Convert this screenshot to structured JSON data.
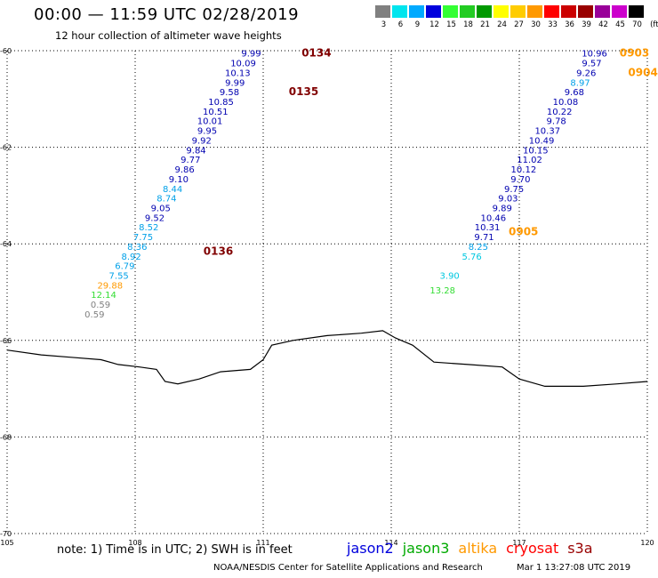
{
  "header": {
    "title": "00:00 — 11:59 UTC 02/28/2019",
    "subtitle": "12 hour collection of altimeter wave heights"
  },
  "colorbar": {
    "swatches": [
      "#808080",
      "#00e5ee",
      "#00aaff",
      "#0000dd",
      "#33ff33",
      "#22cc22",
      "#009900",
      "#ffff00",
      "#ffcc00",
      "#ff9900",
      "#ff0000",
      "#cc0000",
      "#990000",
      "#990099",
      "#cc00cc",
      "#000000"
    ],
    "labels": [
      "3",
      "6",
      "9",
      "12",
      "15",
      "18",
      "21",
      "24",
      "27",
      "30",
      "33",
      "36",
      "39",
      "42",
      "45",
      "70",
      "(ft)"
    ]
  },
  "map": {
    "lon_range": [
      105,
      120
    ],
    "lat_range": [
      -70,
      -60
    ],
    "x_ticks": [
      "105",
      "108",
      "111",
      "114",
      "117",
      "120"
    ],
    "x_tick_values": [
      105,
      108,
      111,
      114,
      117,
      120
    ],
    "y_ticks": [
      "-60",
      "-62",
      "-64",
      "-66",
      "-68",
      "-70"
    ],
    "y_tick_values": [
      -60,
      -62,
      -64,
      -66,
      -68,
      -70
    ],
    "coastline": [
      [
        105,
        -66.2
      ],
      [
        105.8,
        -66.3
      ],
      [
        106.5,
        -66.35
      ],
      [
        107.2,
        -66.4
      ],
      [
        107.6,
        -66.5
      ],
      [
        108.1,
        -66.55
      ],
      [
        108.5,
        -66.6
      ],
      [
        108.7,
        -66.85
      ],
      [
        109.0,
        -66.9
      ],
      [
        109.5,
        -66.8
      ],
      [
        110.0,
        -66.65
      ],
      [
        110.7,
        -66.6
      ],
      [
        111.0,
        -66.4
      ],
      [
        111.2,
        -66.1
      ],
      [
        111.7,
        -66.0
      ],
      [
        112.5,
        -65.9
      ],
      [
        113.3,
        -65.85
      ],
      [
        113.8,
        -65.8
      ],
      [
        114.1,
        -65.95
      ],
      [
        114.5,
        -66.1
      ],
      [
        115.0,
        -66.45
      ],
      [
        115.8,
        -66.5
      ],
      [
        116.6,
        -66.55
      ],
      [
        117.0,
        -66.8
      ],
      [
        117.6,
        -66.95
      ],
      [
        118.5,
        -66.95
      ],
      [
        119.3,
        -66.9
      ],
      [
        120,
        -66.85
      ]
    ],
    "tracks": [
      {
        "label": "0134",
        "label_lon": 111.9,
        "label_lat": -60.05,
        "label_color": "#800000",
        "points": [
          [
            110.95,
            -60.05,
            "9.99",
            "#0000b0"
          ],
          [
            110.83,
            -60.25,
            "10.09",
            "#0000b0"
          ],
          [
            110.7,
            -60.45,
            "10.13",
            "#0000b0"
          ],
          [
            110.57,
            -60.65,
            "9.99",
            "#0000b0"
          ],
          [
            110.44,
            -60.85,
            "9.58",
            "#0000b0"
          ],
          [
            110.31,
            -61.05,
            "10.85",
            "#0000b0"
          ],
          [
            110.18,
            -61.25,
            "10.51",
            "#0000b0"
          ],
          [
            110.05,
            -61.45,
            "10.01",
            "#0000b0"
          ],
          [
            109.92,
            -61.65,
            "9.95",
            "#0000b0"
          ],
          [
            109.79,
            -61.85,
            "9.92",
            "#0000b0"
          ],
          [
            109.66,
            -62.05,
            "9.84",
            "#0000b0"
          ],
          [
            109.53,
            -62.25,
            "9.77",
            "#0000b0"
          ],
          [
            109.39,
            -62.45,
            "9.86",
            "#0000b0"
          ],
          [
            109.25,
            -62.65,
            "9.10",
            "#0000b0"
          ],
          [
            109.11,
            -62.85,
            "8.44",
            "#00a0e8"
          ],
          [
            108.97,
            -63.05,
            "8.74",
            "#00a0e8"
          ],
          [
            108.83,
            -63.25,
            "9.05",
            "#0000b0"
          ],
          [
            108.69,
            -63.45,
            "9.52",
            "#0000b0"
          ],
          [
            108.55,
            -63.65,
            "8.52",
            "#00a0e8"
          ],
          [
            108.42,
            -63.85,
            "7.75",
            "#00a0e8"
          ],
          [
            108.28,
            -64.05,
            "8.36",
            "#00a0e8"
          ],
          [
            108.14,
            -64.25,
            "8.92",
            "#00a0e8"
          ],
          [
            107.99,
            -64.45,
            "6.79",
            "#00a0e8"
          ],
          [
            107.85,
            -64.65,
            "7.55",
            "#00a0e8"
          ],
          [
            107.71,
            -64.85,
            "29.88",
            "#ff9900"
          ],
          [
            107.56,
            -65.05,
            "12.14",
            "#33dd33"
          ],
          [
            107.42,
            -65.25,
            "0.59",
            "#808080"
          ],
          [
            107.28,
            -65.45,
            "0.59",
            "#808080"
          ]
        ]
      },
      {
        "label": "0135",
        "label_lon": 111.6,
        "label_lat": -60.85,
        "label_color": "#800000",
        "points": []
      },
      {
        "label": "0136",
        "label_lon": 109.6,
        "label_lat": -64.15,
        "label_color": "#800000",
        "points": []
      },
      {
        "label": "0903",
        "label_lon": 119.35,
        "label_lat": -60.05,
        "label_color": "#ff9900",
        "points": [
          [
            119.06,
            -60.05,
            "10.96",
            "#0000b0"
          ],
          [
            118.93,
            -60.25,
            "9.57",
            "#0000b0"
          ],
          [
            118.8,
            -60.45,
            "9.26",
            "#0000b0"
          ],
          [
            118.66,
            -60.65,
            "8.97",
            "#00a0e8"
          ],
          [
            118.52,
            -60.85,
            "9.68",
            "#0000b0"
          ],
          [
            118.38,
            -61.05,
            "10.08",
            "#0000b0"
          ],
          [
            118.24,
            -61.25,
            "10.22",
            "#0000b0"
          ],
          [
            118.1,
            -61.45,
            "9.78",
            "#0000b0"
          ],
          [
            117.96,
            -61.65,
            "10.37",
            "#0000b0"
          ],
          [
            117.82,
            -61.85,
            "10.49",
            "#0000b0"
          ],
          [
            117.68,
            -62.05,
            "10.15",
            "#0000b0"
          ],
          [
            117.54,
            -62.25,
            "11.02",
            "#0000b0"
          ],
          [
            117.4,
            -62.45,
            "10.12",
            "#0000b0"
          ],
          [
            117.26,
            -62.65,
            "9.70",
            "#0000b0"
          ],
          [
            117.11,
            -62.85,
            "9.75",
            "#0000b0"
          ],
          [
            116.97,
            -63.05,
            "9.03",
            "#0000b0"
          ],
          [
            116.83,
            -63.25,
            "9.89",
            "#0000b0"
          ],
          [
            116.69,
            -63.45,
            "10.46",
            "#0000b0"
          ],
          [
            116.55,
            -63.65,
            "10.31",
            "#0000b0"
          ],
          [
            116.41,
            -63.85,
            "9.71",
            "#0000b0"
          ],
          [
            116.27,
            -64.05,
            "8.25",
            "#00a0e8"
          ],
          [
            116.12,
            -64.25,
            "5.76",
            "#00c8e0"
          ],
          [
            115.6,
            -64.65,
            "3.90",
            "#00c8e0"
          ],
          [
            115.5,
            -64.95,
            "13.28",
            "#33dd33"
          ]
        ]
      },
      {
        "label": "0904",
        "label_lon": 119.55,
        "label_lat": -60.45,
        "label_color": "#ff9900",
        "points": []
      },
      {
        "label": "0905",
        "label_lon": 116.75,
        "label_lat": -63.75,
        "label_color": "#ff9900",
        "points": []
      }
    ]
  },
  "footer": {
    "note": "note: 1) Time is in UTC; 2) SWH is in feet",
    "legend": [
      {
        "name": "jason2",
        "color": "#0000dd"
      },
      {
        "name": "jason3",
        "color": "#00aa00"
      },
      {
        "name": "altika",
        "color": "#ff9900"
      },
      {
        "name": "cryosat",
        "color": "#ff0000"
      },
      {
        "name": "s3a",
        "color": "#990000"
      }
    ],
    "credit": "NOAA/NESDIS Center for Satellite Applications and Research",
    "timestamp": "Mar  1 13:27:08 UTC 2019"
  }
}
